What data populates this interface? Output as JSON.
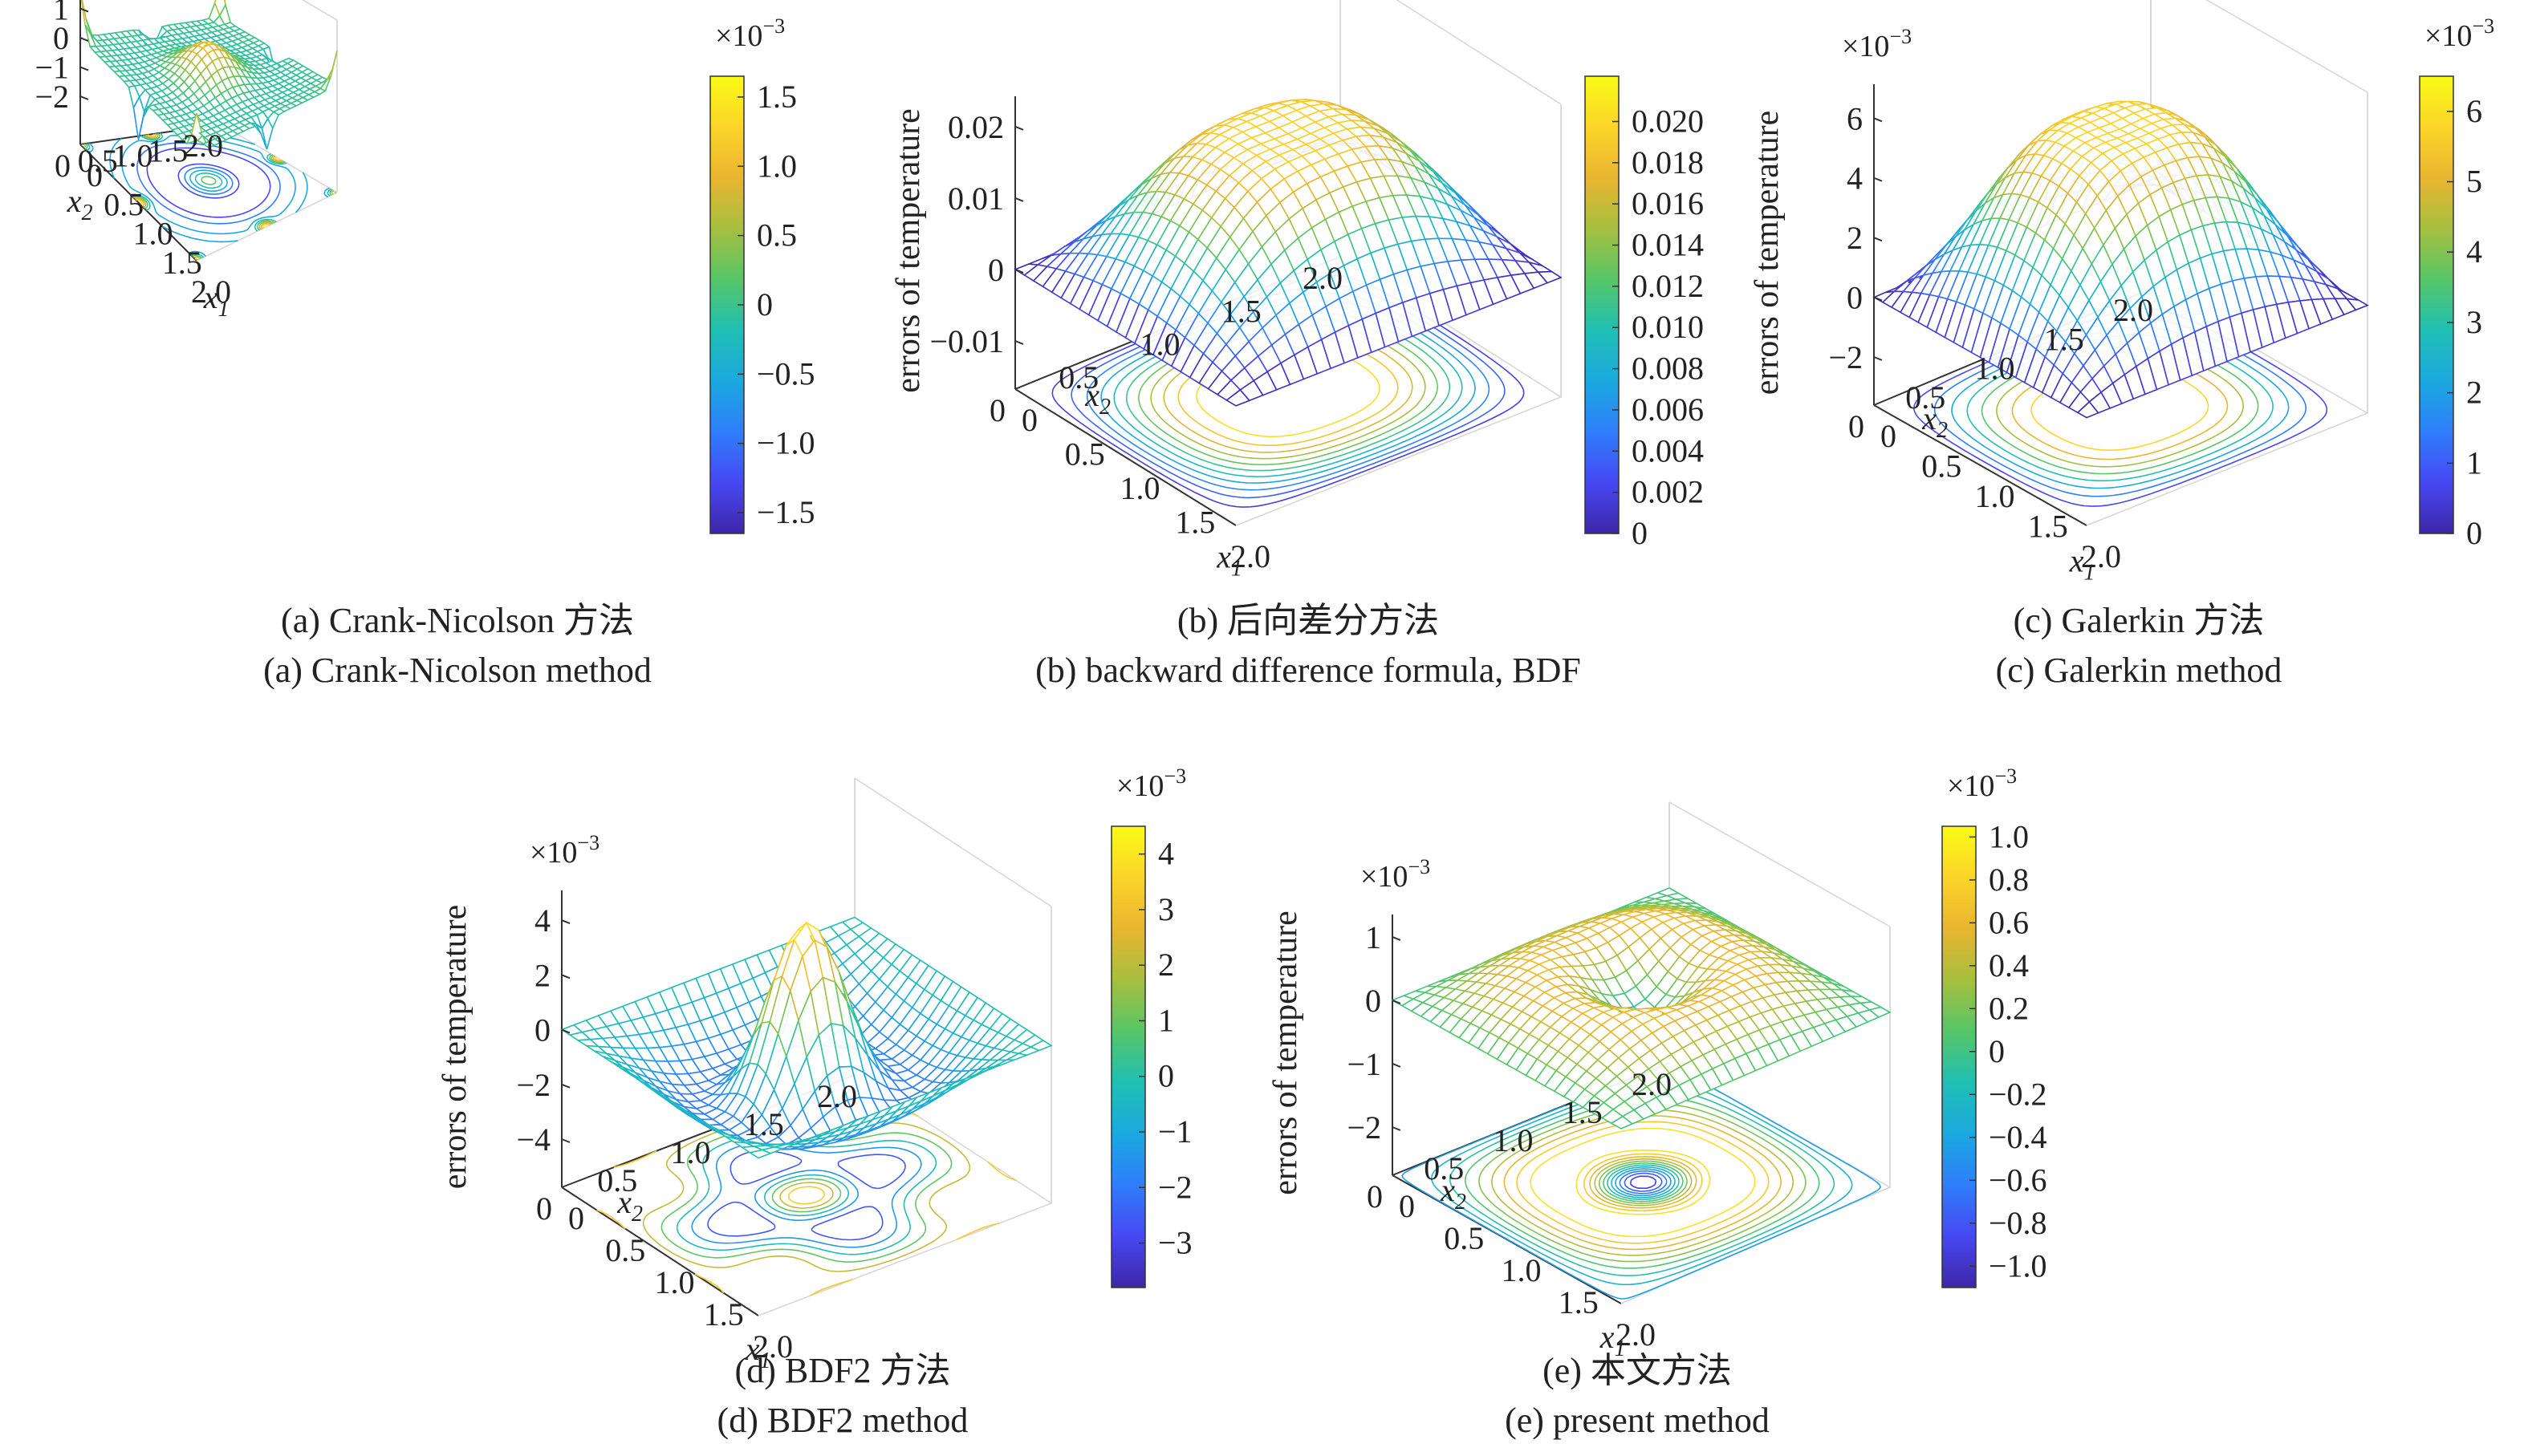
{
  "figure": {
    "zlabel": "errors of temperature",
    "xlabel_base": "x",
    "xlabel_sub": "1",
    "ylabel_base": "x",
    "ylabel_sub": "2",
    "exp_prefix": "×10",
    "exp_power": "−3"
  },
  "palette": [
    "#3e26a8",
    "#4748f3",
    "#2f7efb",
    "#1aa9df",
    "#20bfb3",
    "#56c667",
    "#a6bf3f",
    "#e9b530",
    "#fcd429",
    "#f9fb15"
  ],
  "chart_data": [
    {
      "id": "a",
      "type": "surface",
      "caption_cn": "(a) Crank-Nicolson 方法",
      "caption_en": "(a) Crank-Nicolson method",
      "xlabel": "x1",
      "ylabel": "x2",
      "zlabel": "errors of temperature",
      "x_range": [
        0,
        2.0
      ],
      "y_range": [
        0,
        2.0
      ],
      "x_ticks": [
        "0",
        "0.5",
        "1.0",
        "1.5",
        "2.0"
      ],
      "y_ticks": [
        "0",
        "0.5",
        "1.0",
        "1.5",
        "2.0"
      ],
      "z_ticks": [
        {
          "v": 1,
          "t": "1"
        },
        {
          "v": 0,
          "t": "0"
        },
        {
          "v": -1,
          "t": "−1"
        },
        {
          "v": -2,
          "t": "−2"
        }
      ],
      "z_range": [
        -2,
        1.7
      ],
      "z_multiplier": "×10^-3",
      "colorbar_ticks": [
        {
          "v": 1.5,
          "t": "1.5"
        },
        {
          "v": 1.0,
          "t": "1.0"
        },
        {
          "v": 0.5,
          "t": "0.5"
        },
        {
          "v": 0,
          "t": "0"
        },
        {
          "v": -0.5,
          "t": "−0.5"
        },
        {
          "v": -1.0,
          "t": "−1.0"
        },
        {
          "v": -1.5,
          "t": "−1.5"
        }
      ],
      "colorbar_range": [
        -1.65,
        1.65
      ],
      "colorbar_multiplier": "×10^-3",
      "surface": {
        "shape": "central_peak_with_corner_spikes",
        "peak": 1.0,
        "edge": 0.45,
        "min": -1.6,
        "max": 1.6
      },
      "contour": {
        "shape": "rings_and_corner_spots",
        "levels": 8
      }
    },
    {
      "id": "b",
      "type": "surface",
      "caption_cn": "(b) 后向差分方法",
      "caption_en": "(b) backward difference formula, BDF",
      "xlabel": "x1",
      "ylabel": "x2",
      "zlabel": "errors of temperature",
      "x_range": [
        0,
        2.0
      ],
      "y_range": [
        0,
        2.0
      ],
      "x_ticks": [
        "0",
        "0.5",
        "1.0",
        "1.5",
        "2.0"
      ],
      "y_ticks": [
        "0",
        "0.5",
        "1.0",
        "1.5",
        "2.0"
      ],
      "z_ticks": [
        {
          "v": 0.02,
          "t": "0.02"
        },
        {
          "v": 0.01,
          "t": "0.01"
        },
        {
          "v": 0,
          "t": "0"
        },
        {
          "v": -0.01,
          "t": "−0.01"
        }
      ],
      "z_range": [
        -0.01,
        0.022
      ],
      "z_multiplier": "",
      "colorbar_ticks": [
        {
          "v": 0.02,
          "t": "0.020"
        },
        {
          "v": 0.018,
          "t": "0.018"
        },
        {
          "v": 0.016,
          "t": "0.016"
        },
        {
          "v": 0.014,
          "t": "0.014"
        },
        {
          "v": 0.012,
          "t": "0.012"
        },
        {
          "v": 0.01,
          "t": "0.010"
        },
        {
          "v": 0.008,
          "t": "0.008"
        },
        {
          "v": 0.006,
          "t": "0.006"
        },
        {
          "v": 0.004,
          "t": "0.004"
        },
        {
          "v": 0.002,
          "t": "0.002"
        },
        {
          "v": 0,
          "t": "0"
        }
      ],
      "colorbar_range": [
        0,
        0.0222
      ],
      "colorbar_multiplier": "",
      "surface": {
        "shape": "four_hump_plateau",
        "peak": 0.022,
        "min": 0,
        "max": 0.022
      },
      "contour": {
        "shape": "plateau_rings",
        "levels": 11
      }
    },
    {
      "id": "c",
      "type": "surface",
      "caption_cn": "(c) Galerkin 方法",
      "caption_en": "(c) Galerkin method",
      "xlabel": "x1",
      "ylabel": "x2",
      "zlabel": "errors of temperature",
      "x_range": [
        0,
        2.0
      ],
      "y_range": [
        0,
        2.0
      ],
      "x_ticks": [
        "0",
        "0.5",
        "1.0",
        "1.5",
        "2.0"
      ],
      "y_ticks": [
        "0",
        "0.5",
        "1.0",
        "1.5",
        "2.0"
      ],
      "z_ticks": [
        {
          "v": 6,
          "t": "6"
        },
        {
          "v": 4,
          "t": "4"
        },
        {
          "v": 2,
          "t": "2"
        },
        {
          "v": 0,
          "t": "0"
        },
        {
          "v": -2,
          "t": "−2"
        }
      ],
      "z_range": [
        -2,
        6.6
      ],
      "z_multiplier": "×10^-3",
      "colorbar_ticks": [
        {
          "v": 6,
          "t": "6"
        },
        {
          "v": 5,
          "t": "5"
        },
        {
          "v": 4,
          "t": "4"
        },
        {
          "v": 3,
          "t": "3"
        },
        {
          "v": 2,
          "t": "2"
        },
        {
          "v": 1,
          "t": "1"
        },
        {
          "v": 0,
          "t": "0"
        }
      ],
      "colorbar_range": [
        0,
        6.5
      ],
      "colorbar_multiplier": "×10^-3",
      "surface": {
        "shape": "four_hump_plateau",
        "peak": 6.5,
        "min": 0,
        "max": 6.5
      },
      "contour": {
        "shape": "plateau_rings",
        "levels": 8
      }
    },
    {
      "id": "d",
      "type": "surface",
      "caption_cn": "(d) BDF2 方法",
      "caption_en": "(d) BDF2 method",
      "xlabel": "x1",
      "ylabel": "x2",
      "zlabel": "errors of temperature",
      "x_range": [
        0,
        2.0
      ],
      "y_range": [
        0,
        2.0
      ],
      "x_ticks": [
        "0",
        "0.5",
        "1.0",
        "1.5",
        "2.0"
      ],
      "y_ticks": [
        "0",
        "0.5",
        "1.0",
        "1.5",
        "2.0"
      ],
      "z_ticks": [
        {
          "v": 4,
          "t": "4"
        },
        {
          "v": 2,
          "t": "2"
        },
        {
          "v": 0,
          "t": "0"
        },
        {
          "v": -2,
          "t": "−2"
        },
        {
          "v": -4,
          "t": "−4"
        }
      ],
      "z_range": [
        -4,
        4.5
      ],
      "z_multiplier": "×10^-3",
      "colorbar_ticks": [
        {
          "v": 4,
          "t": "4"
        },
        {
          "v": 3,
          "t": "3"
        },
        {
          "v": 2,
          "t": "2"
        },
        {
          "v": 1,
          "t": "1"
        },
        {
          "v": 0,
          "t": "0"
        },
        {
          "v": -1,
          "t": "−1"
        },
        {
          "v": -2,
          "t": "−2"
        },
        {
          "v": -3,
          "t": "−3"
        }
      ],
      "colorbar_range": [
        -3.8,
        4.5
      ],
      "colorbar_multiplier": "×10^-3",
      "surface": {
        "shape": "central_peak_with_dips",
        "peak": 4.2,
        "min": -3.7,
        "max": 4.2
      },
      "contour": {
        "shape": "dip_rings",
        "levels": 6
      }
    },
    {
      "id": "e",
      "type": "surface",
      "caption_cn": "(e) 本文方法",
      "caption_en": "(e) present method",
      "xlabel": "x1",
      "ylabel": "x2",
      "zlabel": "errors of temperature",
      "x_range": [
        0,
        2.0
      ],
      "y_range": [
        0,
        2.0
      ],
      "x_ticks": [
        "0",
        "0.5",
        "1.0",
        "1.5",
        "2.0"
      ],
      "y_ticks": [
        "0",
        "0.5",
        "1.0",
        "1.5",
        "2.0"
      ],
      "z_ticks": [
        {
          "v": 1,
          "t": "1"
        },
        {
          "v": 0,
          "t": "0"
        },
        {
          "v": -1,
          "t": "−1"
        },
        {
          "v": -2,
          "t": "−2"
        }
      ],
      "z_range": [
        -2,
        1.1
      ],
      "z_multiplier": "×10^-3",
      "colorbar_ticks": [
        {
          "v": 1.0,
          "t": "1.0"
        },
        {
          "v": 0.8,
          "t": "0.8"
        },
        {
          "v": 0.6,
          "t": "0.6"
        },
        {
          "v": 0.4,
          "t": "0.4"
        },
        {
          "v": 0.2,
          "t": "0.2"
        },
        {
          "v": 0,
          "t": "0"
        },
        {
          "v": -0.2,
          "t": "−0.2"
        },
        {
          "v": -0.4,
          "t": "−0.4"
        },
        {
          "v": -0.6,
          "t": "−0.6"
        },
        {
          "v": -0.8,
          "t": "−0.8"
        },
        {
          "v": -1.0,
          "t": "−1.0"
        }
      ],
      "colorbar_range": [
        -1.1,
        1.05
      ],
      "colorbar_multiplier": "×10^-3",
      "surface": {
        "shape": "four_hump_plateau",
        "peak": 1.05,
        "min": -1.05,
        "max": 1.05
      },
      "contour": {
        "shape": "center_dip_rings",
        "levels": 12
      }
    }
  ]
}
